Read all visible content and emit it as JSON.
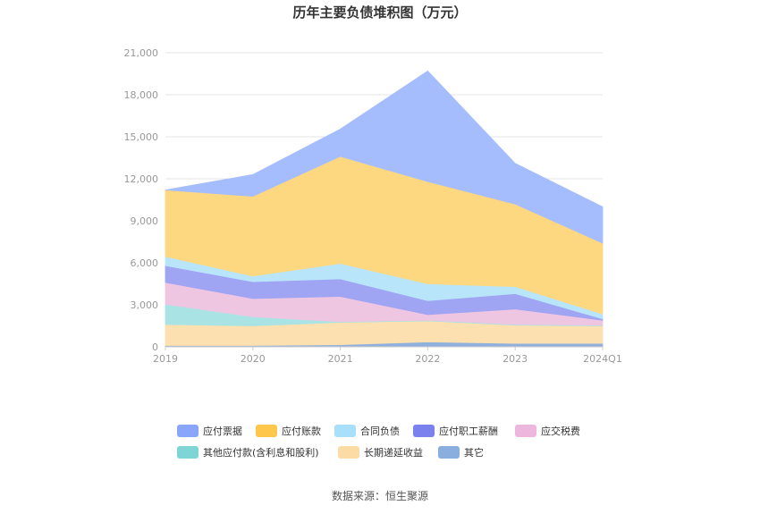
{
  "chart_data": {
    "type": "area",
    "stacked": true,
    "title": "历年主要负债堆积图（万元）",
    "categories": [
      "2019",
      "2020",
      "2021",
      "2022",
      "2023",
      "2024Q1"
    ],
    "ylim": [
      0,
      21000
    ],
    "yticks": [
      0,
      3000,
      6000,
      9000,
      12000,
      15000,
      18000,
      21000
    ],
    "ytick_labels": [
      "0",
      "3,000",
      "6,000",
      "9,000",
      "12,000",
      "15,000",
      "18,000",
      "21,000"
    ],
    "series": [
      {
        "name": "其它",
        "color": "#8fb0dd",
        "values": [
          100,
          100,
          150,
          350,
          250,
          250
        ]
      },
      {
        "name": "长期递延收益",
        "color": "#fde0b0",
        "values": [
          1500,
          1400,
          1600,
          1500,
          1300,
          1250
        ]
      },
      {
        "name": "其他应付款(含利息和股利)",
        "color": "#a9e3e3",
        "values": [
          1450,
          650,
          50,
          50,
          50,
          50
        ]
      },
      {
        "name": "应交税费",
        "color": "#efc6e2",
        "values": [
          1550,
          1300,
          1800,
          400,
          1100,
          350
        ]
      },
      {
        "name": "应付职工薪酬",
        "color": "#9fa4f3",
        "values": [
          1200,
          1200,
          1250,
          1000,
          1100,
          100
        ]
      },
      {
        "name": "合同负债",
        "color": "#b9e5fb",
        "values": [
          650,
          400,
          1100,
          1200,
          500,
          350
        ]
      },
      {
        "name": "应付账款",
        "color": "#fed880",
        "values": [
          4750,
          5700,
          7650,
          7300,
          5900,
          5050
        ]
      },
      {
        "name": "应付票据",
        "color": "#a6bdfd",
        "values": [
          0,
          1550,
          1950,
          7900,
          2900,
          2600
        ]
      }
    ],
    "legend": [
      {
        "name": "应付票据",
        "color": "#8aa6fb"
      },
      {
        "name": "应付账款",
        "color": "#fdc74c"
      },
      {
        "name": "合同负债",
        "color": "#a8e0fb"
      },
      {
        "name": "应付职工薪酬",
        "color": "#7b80ef"
      },
      {
        "name": "应交税费",
        "color": "#ecb6dd"
      },
      {
        "name": "其他应付款(含利息和股利)",
        "color": "#7fd5d5"
      },
      {
        "name": "长期递延收益",
        "color": "#fddba5"
      },
      {
        "name": "其它",
        "color": "#8aaede"
      }
    ],
    "legend_position": "bottom"
  },
  "footer": {
    "source": "数据来源：恒生聚源"
  }
}
